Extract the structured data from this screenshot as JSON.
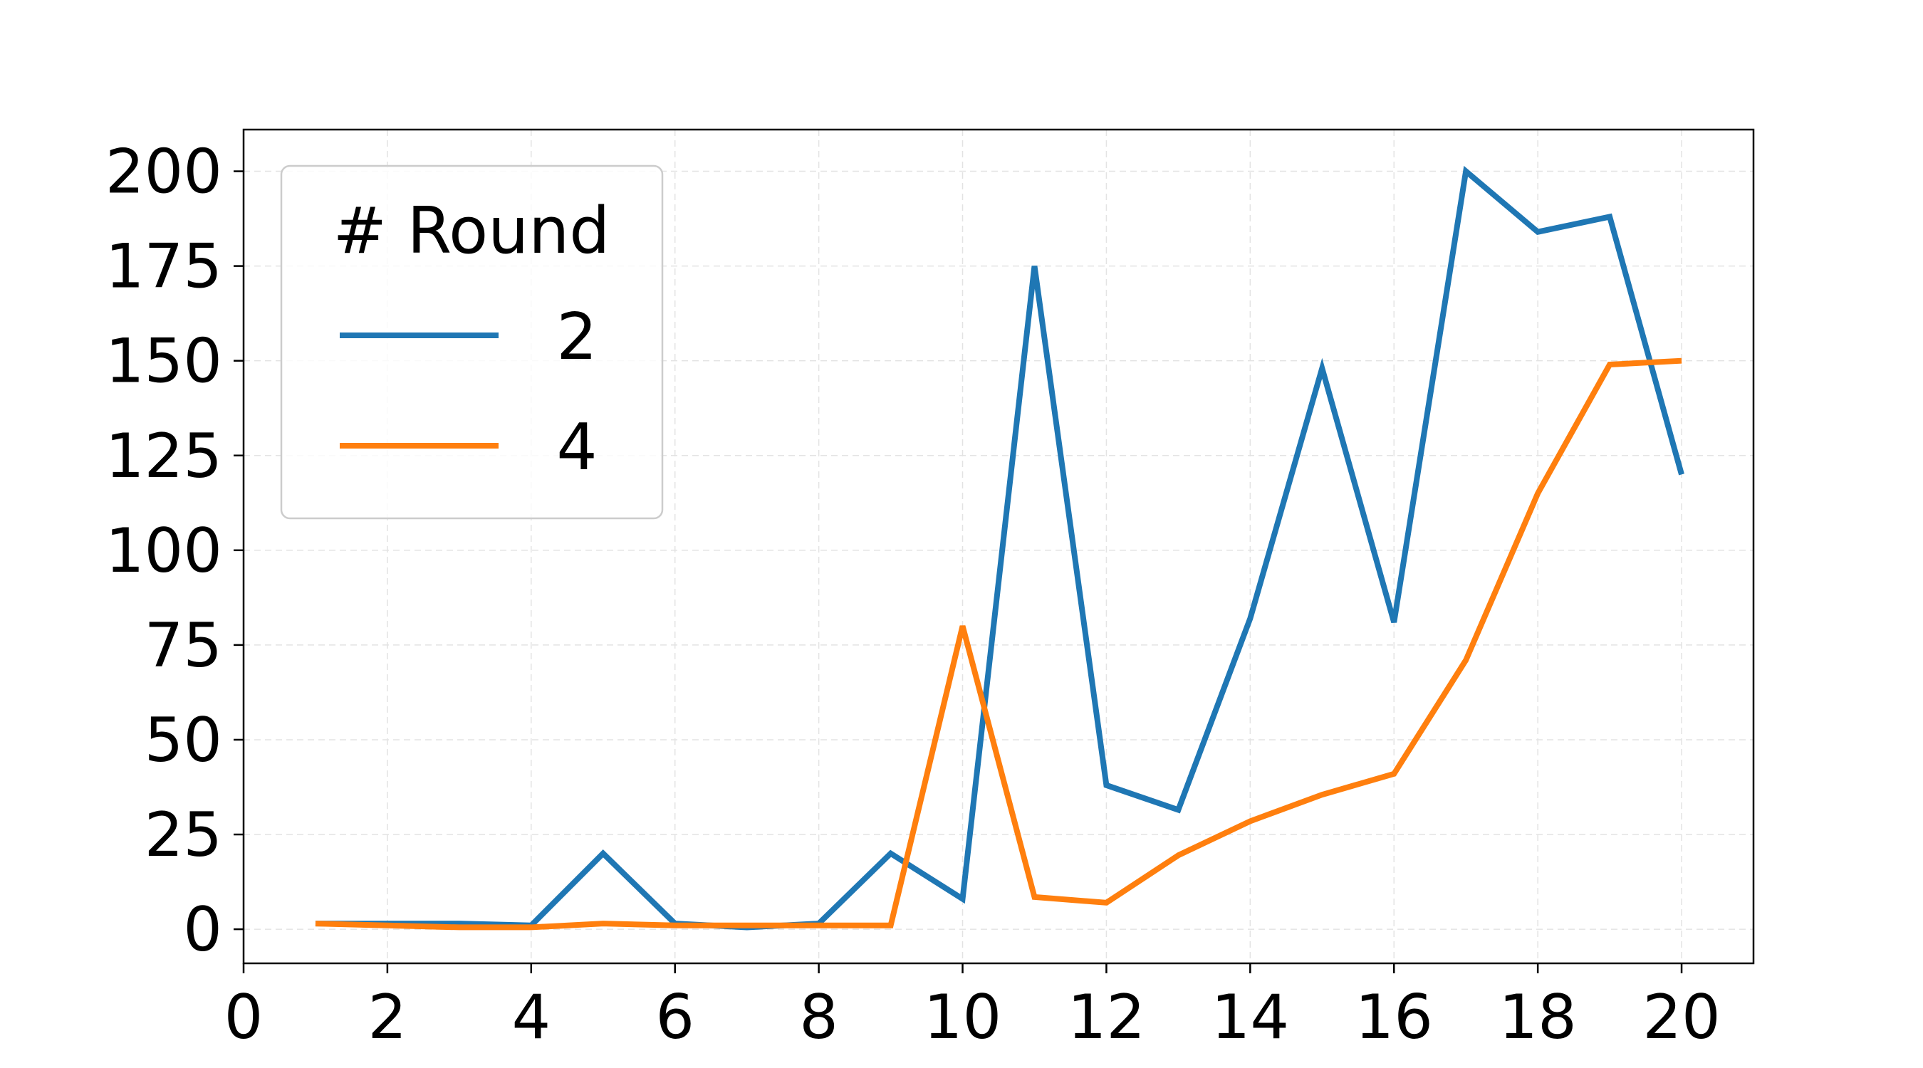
{
  "chart_data": {
    "type": "line",
    "title": "",
    "xlabel": "",
    "ylabel": "",
    "xlim": [
      0,
      21
    ],
    "ylim": [
      -9,
      211
    ],
    "x_ticks": [
      0,
      2,
      4,
      6,
      8,
      10,
      12,
      14,
      16,
      18,
      20
    ],
    "y_ticks": [
      0,
      25,
      50,
      75,
      100,
      125,
      150,
      175,
      200
    ],
    "x_tick_labels": [
      "0",
      "2",
      "4",
      "6",
      "8",
      "10",
      "12",
      "14",
      "16",
      "18",
      "20"
    ],
    "y_tick_labels": [
      "0",
      "25",
      "50",
      "75",
      "100",
      "125",
      "150",
      "175",
      "200"
    ],
    "grid": true,
    "legend": {
      "title": "# Round",
      "placement": "upper-left"
    },
    "x": [
      1,
      2,
      3,
      4,
      5,
      6,
      7,
      8,
      9,
      10,
      11,
      12,
      13,
      14,
      15,
      16,
      17,
      18,
      19,
      20
    ],
    "series": [
      {
        "name": "2",
        "color": "#1f77b4",
        "values": [
          1.5,
          1.5,
          1.5,
          1,
          20,
          1.5,
          0.5,
          1.5,
          20,
          8,
          175,
          38,
          31.5,
          82,
          148,
          81,
          200,
          184,
          188,
          120
        ]
      },
      {
        "name": "4",
        "color": "#ff7f0e",
        "values": [
          1.5,
          1,
          0.5,
          0.5,
          1.5,
          1,
          1,
          1,
          1,
          80,
          8.5,
          7,
          19.5,
          28.5,
          35.5,
          41,
          71,
          115,
          149,
          150
        ]
      }
    ]
  }
}
